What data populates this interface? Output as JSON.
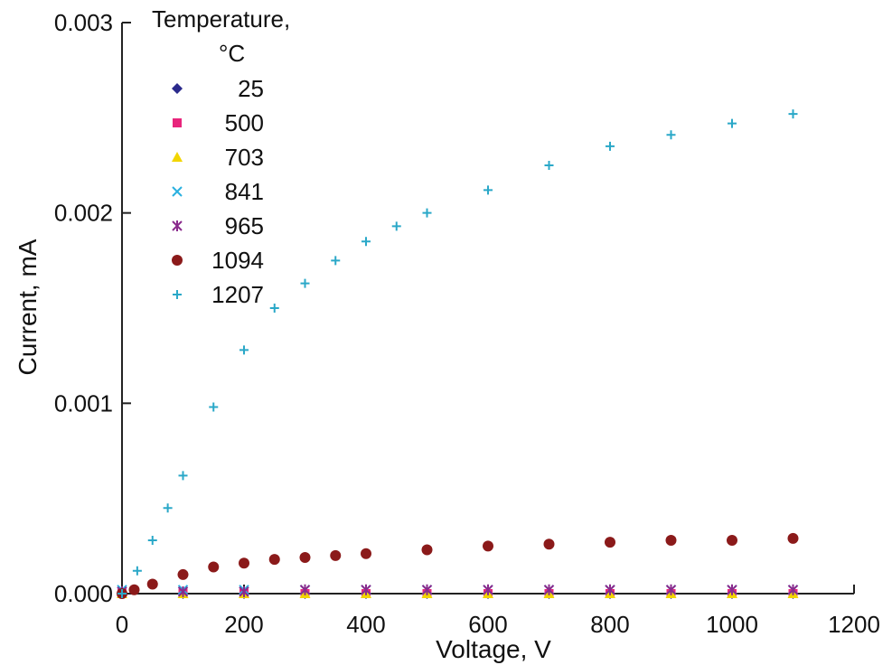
{
  "chart_data": {
    "type": "scatter",
    "xlabel": "Voltage, V",
    "ylabel": "Current, mA",
    "xlim": [
      0,
      1200
    ],
    "ylim": [
      0,
      0.003
    ],
    "xticks": [
      0,
      200,
      400,
      600,
      800,
      1000,
      1200
    ],
    "xtick_labels": [
      "0",
      "200",
      "400",
      "600",
      "800",
      "1000",
      "1200"
    ],
    "yticks": [
      0,
      0.001,
      0.002,
      0.003
    ],
    "ytick_labels": [
      "0.000",
      "0.001",
      "0.002",
      "0.003"
    ],
    "grid": false,
    "legend": {
      "title_line1": "Temperature,",
      "title_line2": "°C",
      "placement": "top-left"
    },
    "series": [
      {
        "name": "25",
        "marker": "diamond",
        "color": "#2b2a8c",
        "x": [
          0,
          100,
          200,
          300,
          400,
          500,
          600,
          700,
          800,
          900,
          1000,
          1100
        ],
        "y": [
          0,
          0,
          0,
          0,
          0,
          0,
          0,
          0,
          0,
          0,
          0,
          0
        ]
      },
      {
        "name": "500",
        "marker": "square",
        "color": "#e8257c",
        "x": [
          0,
          100,
          200,
          300,
          400,
          500,
          600,
          700,
          800,
          900,
          1000,
          1100
        ],
        "y": [
          0,
          0,
          0,
          0,
          0,
          0,
          0,
          0,
          0,
          0,
          0,
          0
        ]
      },
      {
        "name": "703",
        "marker": "triangle",
        "color": "#f2d500",
        "x": [
          0,
          100,
          200,
          300,
          400,
          500,
          600,
          700,
          800,
          900,
          1000,
          1100
        ],
        "y": [
          0,
          0,
          0,
          0,
          0,
          0,
          0,
          0,
          0,
          0,
          0,
          0
        ]
      },
      {
        "name": "841",
        "marker": "x",
        "color": "#2ab0e0",
        "x": [
          0,
          100,
          200,
          300,
          400,
          500,
          600,
          700,
          800,
          900,
          1000,
          1100
        ],
        "y": [
          2e-05,
          2e-05,
          2e-05,
          2e-05,
          2e-05,
          2e-05,
          2e-05,
          2e-05,
          2e-05,
          2e-05,
          2e-05,
          2e-05
        ]
      },
      {
        "name": "965",
        "marker": "asterisk",
        "color": "#8a2a8c",
        "x": [
          0,
          100,
          200,
          300,
          400,
          500,
          600,
          700,
          800,
          900,
          1000,
          1100
        ],
        "y": [
          1e-05,
          1e-05,
          1e-05,
          2e-05,
          2e-05,
          2e-05,
          2e-05,
          2e-05,
          2e-05,
          2e-05,
          2e-05,
          2e-05
        ]
      },
      {
        "name": "1094",
        "marker": "circle",
        "color": "#8b1a1a",
        "x": [
          0,
          20,
          50,
          100,
          150,
          200,
          250,
          300,
          350,
          400,
          500,
          600,
          700,
          800,
          900,
          1000,
          1100
        ],
        "y": [
          0.0,
          2e-05,
          5e-05,
          0.0001,
          0.00014,
          0.00016,
          0.00018,
          0.00019,
          0.0002,
          0.00021,
          0.00023,
          0.00025,
          0.00026,
          0.00027,
          0.00028,
          0.00028,
          0.00029
        ]
      },
      {
        "name": "1207",
        "marker": "plus",
        "color": "#2aa8c8",
        "x": [
          0,
          25,
          50,
          75,
          100,
          150,
          200,
          250,
          300,
          350,
          400,
          450,
          500,
          600,
          700,
          800,
          900,
          1000,
          1100
        ],
        "y": [
          0.0,
          0.00012,
          0.00028,
          0.00045,
          0.00062,
          0.00098,
          0.00128,
          0.0015,
          0.00163,
          0.00175,
          0.00185,
          0.00193,
          0.002,
          0.00212,
          0.00225,
          0.00235,
          0.00241,
          0.00247,
          0.00252
        ]
      }
    ]
  }
}
